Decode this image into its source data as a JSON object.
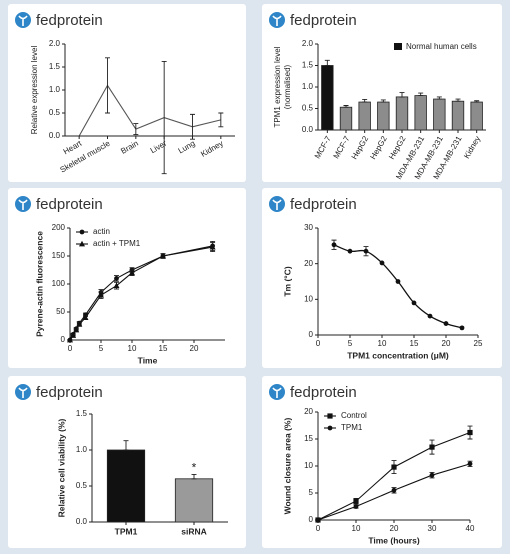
{
  "brand": "fedprotein",
  "chart_data": [
    {
      "type": "line",
      "ylabel": "Relative expression level",
      "categories": [
        "Heart",
        "Skeletal muscle",
        "Brain",
        "Liver",
        "Lung",
        "Kidney"
      ],
      "values": [
        0,
        1.1,
        0.15,
        0.4,
        0.2,
        0.35
      ],
      "errors": [
        0,
        0.6,
        0.12,
        1.22,
        0.27,
        0.15
      ],
      "color": "#555555",
      "ylim": [
        0,
        2
      ],
      "yticks": [
        {
          "value": 0,
          "label": "0.0"
        },
        0.5,
        {
          "value": 1,
          "label": "1.0"
        },
        1.5,
        {
          "value": 2,
          "label": "2.0"
        }
      ]
    },
    {
      "type": "bar",
      "ylabel": [
        "TPM1 expression level",
        "(normalised)"
      ],
      "categories": [
        "MCF-7",
        "MCF-7",
        "HepG2",
        "HepG2",
        "HepG2",
        "MDA-MB-231",
        "MDA-MB-231",
        "MDA-MB-231",
        "Kidney"
      ],
      "values": [
        1.5,
        0.53,
        0.65,
        0.65,
        0.77,
        0.8,
        0.72,
        0.67,
        0.65
      ],
      "errors": [
        0.12,
        0.04,
        0.06,
        0.05,
        0.1,
        0.06,
        0.05,
        0.05,
        0.03
      ],
      "colors": [
        "#111111",
        "#8c8c8c",
        "#8c8c8c",
        "#8c8c8c",
        "#8c8c8c",
        "#8c8c8c",
        "#8c8c8c",
        "#8c8c8c",
        "#8c8c8c"
      ],
      "legend": {
        "label": "Normal human cells",
        "color": "#111111"
      },
      "ylim": [
        0,
        2
      ],
      "yticks": [
        {
          "value": 0,
          "label": "0.0"
        },
        0.5,
        {
          "value": 1,
          "label": "1.0"
        },
        1.5,
        {
          "value": 2,
          "label": "2.0"
        }
      ]
    },
    {
      "type": "line",
      "xlabel": "Time",
      "ylabel": "Pyrene-actin fluorescence",
      "x": [
        0,
        0.5,
        1,
        1.5,
        2.5,
        5,
        7.5,
        10,
        15,
        23
      ],
      "series": [
        {
          "name": "actin",
          "color": "#111111",
          "marker": "circle",
          "values": [
            0,
            10,
            20,
            30,
            45,
            85,
            110,
            125,
            150,
            168
          ],
          "errors": [
            0,
            2,
            2,
            3,
            3,
            5,
            5,
            4,
            4,
            8
          ]
        },
        {
          "name": "actin + TPM1",
          "color": "#111111",
          "marker": "triangle",
          "values": [
            0,
            8,
            18,
            28,
            40,
            80,
            97,
            120,
            150,
            166
          ],
          "errors": [
            0,
            2,
            2,
            3,
            3,
            6,
            6,
            5,
            4,
            8
          ]
        }
      ],
      "xlim": [
        0,
        25
      ],
      "xticks": [
        0,
        5,
        10,
        15,
        20
      ],
      "ylim": [
        0,
        200
      ],
      "yticks": [
        0,
        50,
        100,
        150,
        200
      ]
    },
    {
      "type": "scatter",
      "xlabel": "TPM1 concentration (μM)",
      "ylabel": "Tm (°C)",
      "fit_curve": true,
      "color": "#111111",
      "x": [
        2.5,
        5,
        7.5,
        10,
        12.5,
        15,
        17.5,
        20,
        22.5
      ],
      "values": [
        25.3,
        23.5,
        23.5,
        20.2,
        15,
        9,
        5.3,
        3.2,
        2
      ],
      "errors": [
        1.3,
        null,
        1.3,
        null,
        null,
        null,
        null,
        null,
        null
      ],
      "xlim": [
        0,
        25
      ],
      "xticks": [
        0,
        5,
        10,
        15,
        20,
        25
      ],
      "ylim": [
        0,
        30
      ],
      "yticks": [
        0,
        10,
        20,
        30
      ]
    },
    {
      "type": "bar",
      "ylabel": "Relative cell viability (%)",
      "annotation": "*",
      "categories": [
        "TPM1",
        "siRNA"
      ],
      "values": [
        1.0,
        0.6
      ],
      "errors": [
        0.13,
        0.06
      ],
      "colors": [
        "#111111",
        "#9a9a9a"
      ],
      "ylim": [
        0,
        1.5
      ],
      "yticks": [
        {
          "value": 0,
          "label": "0.0"
        },
        0.5,
        {
          "value": 1,
          "label": "1.0"
        },
        1.5
      ]
    },
    {
      "type": "line",
      "xlabel": "Time (hours)",
      "ylabel": "Wound closure area (%)",
      "x": [
        0,
        10,
        20,
        30,
        40
      ],
      "series": [
        {
          "name": "Control",
          "color": "#111111",
          "marker": "square",
          "values": [
            0,
            3.5,
            9.8,
            13.5,
            16.2
          ],
          "errors": [
            0,
            0.5,
            1.2,
            1.3,
            1.2
          ]
        },
        {
          "name": "TPM1",
          "color": "#111111",
          "marker": "circle",
          "values": [
            0,
            2.5,
            5.5,
            8.3,
            10.4
          ],
          "errors": [
            0,
            0.3,
            0.5,
            0.5,
            0.5
          ]
        }
      ],
      "xlim": [
        0,
        40
      ],
      "xticks": [
        0,
        10,
        20,
        30,
        40
      ],
      "ylim": [
        0,
        20
      ],
      "yticks": [
        0,
        5,
        10,
        15,
        20
      ]
    }
  ]
}
